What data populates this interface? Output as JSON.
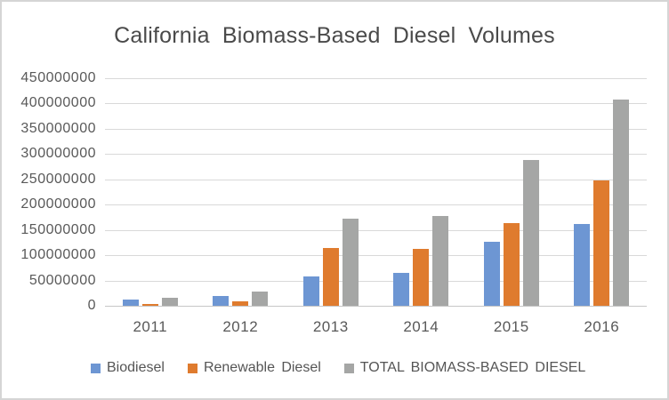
{
  "title": "California Biomass-Based Diesel Volumes",
  "chart_data": {
    "type": "bar",
    "title": "California Biomass-Based Diesel Volumes",
    "xlabel": "",
    "ylabel": "",
    "categories": [
      "2011",
      "2012",
      "2013",
      "2014",
      "2015",
      "2016"
    ],
    "series": [
      {
        "name": "Biodiesel",
        "color": "#6d96d3",
        "values": [
          12000000,
          20000000,
          58000000,
          65000000,
          126000000,
          161000000
        ]
      },
      {
        "name": "Renewable Diesel",
        "color": "#df7b2e",
        "values": [
          4000000,
          9000000,
          115000000,
          112000000,
          163000000,
          247000000
        ]
      },
      {
        "name": "TOTAL BIOMASS-BASED DIESEL",
        "color": "#a5a6a5",
        "values": [
          16000000,
          29000000,
          173000000,
          177000000,
          289000000,
          408000000
        ]
      }
    ],
    "ylim": [
      0,
      450000000
    ],
    "ytick_step": 50000000,
    "ytick_labels": [
      "0",
      "50000000",
      "100000000",
      "150000000",
      "200000000",
      "250000000",
      "300000000",
      "350000000",
      "400000000",
      "450000000"
    ],
    "grid": true,
    "legend_position": "bottom"
  }
}
